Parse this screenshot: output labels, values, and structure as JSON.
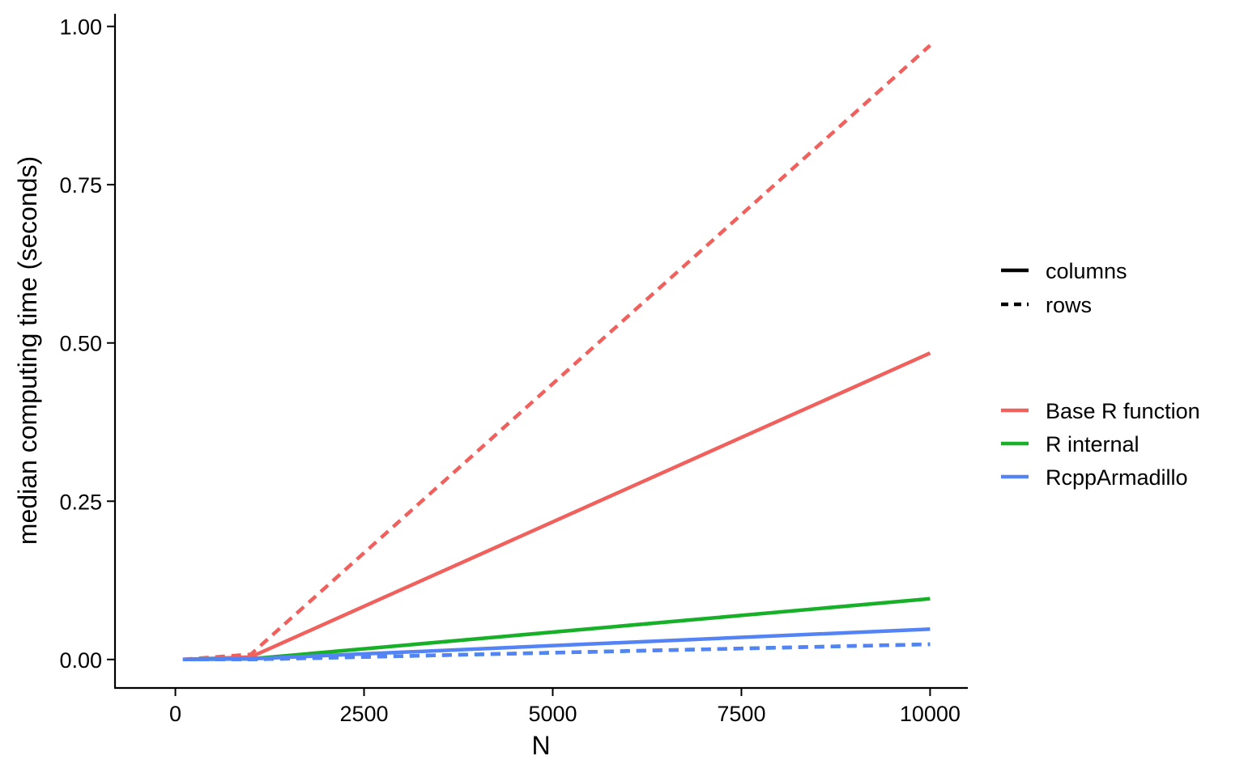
{
  "chart_data": {
    "type": "line",
    "xlabel": "N",
    "ylabel": "median computing time (seconds)",
    "xlim": [
      -800,
      10500
    ],
    "ylim": [
      -0.045,
      1.02
    ],
    "x_ticks": [
      0,
      2500,
      5000,
      7500,
      10000
    ],
    "y_ticks": [
      0.0,
      0.25,
      0.5,
      0.75,
      1.0
    ],
    "x_tick_labels": [
      "0",
      "2500",
      "5000",
      "7500",
      "10000"
    ],
    "y_tick_labels": [
      "0.00",
      "0.25",
      "0.50",
      "0.75",
      "1.00"
    ],
    "grid": false,
    "legend_position": "right",
    "legend_linetype": {
      "items": [
        {
          "label": "columns",
          "dash": "solid"
        },
        {
          "label": "rows",
          "dash": "dashed"
        }
      ]
    },
    "legend_color": {
      "items": [
        {
          "label": "Base R function",
          "color": "#F0615E"
        },
        {
          "label": "R internal",
          "color": "#17B028"
        },
        {
          "label": "RcppArmadillo",
          "color": "#5383F4"
        }
      ]
    },
    "series": [
      {
        "group": "Base R function",
        "orientation": "columns",
        "color": "#F0615E",
        "dash": "solid",
        "x": [
          100,
          1000,
          10000
        ],
        "y": [
          0.0,
          0.004,
          0.484
        ]
      },
      {
        "group": "Base R function",
        "orientation": "rows",
        "color": "#F0615E",
        "dash": "dashed",
        "x": [
          100,
          1000,
          10000
        ],
        "y": [
          0.0,
          0.008,
          0.97
        ]
      },
      {
        "group": "R internal",
        "orientation": "columns",
        "color": "#17B028",
        "dash": "solid",
        "x": [
          100,
          1000,
          10000
        ],
        "y": [
          0.0,
          0.001,
          0.096
        ]
      },
      {
        "group": "R internal",
        "orientation": "rows",
        "color": "#17B028",
        "dash": "dashed",
        "x": [
          100,
          1000,
          10000
        ],
        "y": [
          0.0,
          0.0,
          0.024
        ]
      },
      {
        "group": "RcppArmadillo",
        "orientation": "columns",
        "color": "#5383F4",
        "dash": "solid",
        "x": [
          100,
          1000,
          10000
        ],
        "y": [
          0.0,
          0.001,
          0.048
        ]
      },
      {
        "group": "RcppArmadillo",
        "orientation": "rows",
        "color": "#5383F4",
        "dash": "dashed",
        "x": [
          100,
          1000,
          10000
        ],
        "y": [
          0.0,
          0.0,
          0.024
        ]
      }
    ]
  }
}
